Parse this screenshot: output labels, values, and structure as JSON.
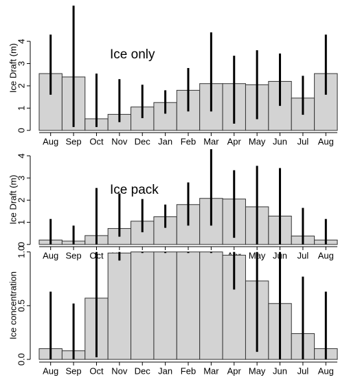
{
  "chart_data": [
    {
      "type": "bar",
      "ylabel": "Ice Draft (m)",
      "annotation": "Ice only",
      "categories": [
        "Aug",
        "Sep",
        "Oct",
        "Nov",
        "Dec",
        "Jan",
        "Feb",
        "Mar",
        "Apr",
        "May",
        "Jun",
        "Jul",
        "Aug"
      ],
      "values": [
        2.55,
        2.4,
        0.52,
        0.72,
        1.05,
        1.25,
        1.8,
        2.1,
        2.1,
        2.05,
        2.2,
        1.45,
        2.55
      ],
      "lower": [
        1.6,
        0.15,
        0.15,
        0.37,
        0.55,
        0.75,
        0.85,
        0.85,
        0.3,
        0.5,
        1.1,
        0.7,
        1.6
      ],
      "upper": [
        4.3,
        5.6,
        2.55,
        2.3,
        2.05,
        1.8,
        2.8,
        4.4,
        3.35,
        3.6,
        3.45,
        2.45,
        4.3
      ],
      "color": "#d3d3d3",
      "ylim": [
        -0.1,
        5.7
      ],
      "yticks": [
        0,
        1,
        2,
        3,
        4
      ]
    },
    {
      "type": "bar",
      "ylabel": "Ice Draft (m)",
      "annotation": "Ice pack",
      "categories": [
        "Aug",
        "Sep",
        "Oct",
        "Nov",
        "Dec",
        "Jan",
        "Feb",
        "Mar",
        "Apr",
        "May",
        "Jun",
        "Jul",
        "Aug"
      ],
      "values": [
        0.2,
        0.15,
        0.4,
        0.72,
        1.05,
        1.25,
        1.8,
        2.08,
        2.05,
        1.7,
        1.28,
        0.38,
        0.2
      ],
      "lower": [
        0,
        0,
        0,
        0.35,
        0.55,
        0.75,
        0.85,
        0.85,
        0.3,
        0,
        0,
        0,
        0
      ],
      "upper": [
        1.15,
        0.85,
        2.55,
        2.3,
        2.05,
        1.8,
        2.8,
        4.3,
        3.35,
        3.55,
        3.45,
        1.65,
        1.15
      ],
      "color": "#d3d3d3",
      "ylim": [
        -0.1,
        4.15
      ],
      "yticks": [
        0,
        1,
        2,
        3,
        4
      ]
    },
    {
      "type": "bar",
      "ylabel": "Ice concentration",
      "categories": [
        "Aug",
        "Sep",
        "Oct",
        "Nov",
        "Dec",
        "Jan",
        "Feb",
        "Mar",
        "Apr",
        "May",
        "Jun",
        "Jul",
        "Aug"
      ],
      "values": [
        0.1,
        0.08,
        0.57,
        0.99,
        1.0,
        1.0,
        1.0,
        1.0,
        0.97,
        0.73,
        0.52,
        0.24,
        0.1
      ],
      "lower": [
        0,
        0,
        0.02,
        0.92,
        0.99,
        0.99,
        0.99,
        0.99,
        0.65,
        0.07,
        0,
        0,
        0
      ],
      "upper": [
        0.63,
        0.52,
        1.0,
        1.0,
        1.0,
        1.0,
        1.0,
        1.0,
        1.0,
        1.0,
        1.0,
        0.77,
        0.63
      ],
      "color": "#d3d3d3",
      "ylim": [
        -0.025,
        1.03
      ],
      "yticks": [
        {
          "value": 0,
          "label": "0.0"
        },
        {
          "value": 0.5,
          "label": "0.5"
        },
        {
          "value": 1,
          "label": "1.0"
        }
      ]
    }
  ]
}
